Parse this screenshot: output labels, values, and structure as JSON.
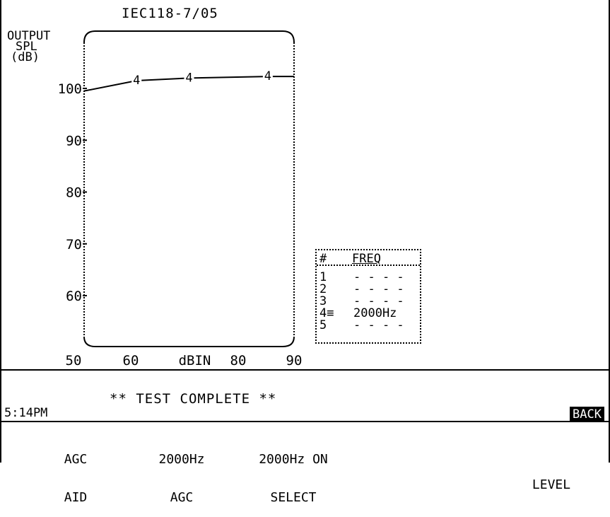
{
  "screen": {
    "title": "IEC118-7/05",
    "y_axis_label": [
      "OUTPUT",
      "SPL",
      "(dB)"
    ],
    "x_axis_label": "dBIN",
    "status_message": "** TEST COMPLETE **",
    "clock": "5:14PM",
    "back_button": "BACK"
  },
  "legend": {
    "header_num": "#",
    "header_freq": "FREQ",
    "rows": [
      {
        "num": "1",
        "value": "- - - -"
      },
      {
        "num": "2",
        "value": "- - - -"
      },
      {
        "num": "3",
        "value": "- - - -"
      },
      {
        "num": "4≡",
        "value": "2000Hz"
      },
      {
        "num": "5",
        "value": "- - - -"
      }
    ]
  },
  "function_keys": [
    {
      "line1": "AGC",
      "line2": "AID"
    },
    {
      "line1": "2000Hz",
      "line2": "AGC"
    },
    {
      "line1": "2000Hz ON",
      "line2": "SELECT"
    },
    {
      "line1": "",
      "line2": "LEVEL"
    }
  ],
  "chart_data": {
    "type": "line",
    "title": "IEC118-7/05",
    "xlabel": "dBIN",
    "ylabel": "OUTPUT SPL (dB)",
    "xlim": [
      50,
      90
    ],
    "ylim": [
      50,
      105
    ],
    "x_ticks": [
      50,
      60,
      80,
      90
    ],
    "y_ticks": [
      60,
      70,
      80,
      90,
      100
    ],
    "series": [
      {
        "marker": "4",
        "x": [
          50,
          60,
          70,
          85,
          90
        ],
        "y": [
          99.5,
          101.5,
          102,
          102.3,
          102.3
        ]
      }
    ]
  }
}
